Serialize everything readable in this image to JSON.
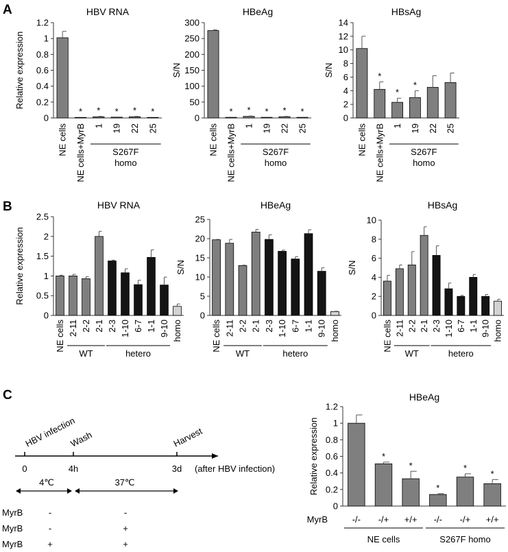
{
  "figure": {
    "panel_labels": [
      "A",
      "B",
      "C"
    ],
    "colors": {
      "grey": "#7f7f7f",
      "black": "#141414",
      "light": "#d2d2d2",
      "axis": "#333333"
    },
    "timeline": {
      "events": [
        {
          "label": "HBV infection",
          "time": "0"
        },
        {
          "label": "Wash",
          "time": "4h"
        },
        {
          "label": "Harvest",
          "time": "3d"
        }
      ],
      "after_label": "(after HBV infection)",
      "temps": [
        "4℃",
        "37℃"
      ],
      "conditions": [
        {
          "name": "MyrB",
          "pre": "-",
          "post": "-"
        },
        {
          "name": "MyrB",
          "pre": "-",
          "post": "+"
        },
        {
          "name": "MyrB",
          "pre": "+",
          "post": "+"
        }
      ]
    }
  },
  "chart_data": [
    {
      "panel": "A",
      "type": "bar",
      "title": "HBV RNA",
      "ylabel": "Relative expression",
      "ylim": [
        0,
        1.2
      ],
      "yticks": [
        "0",
        "0.2",
        "0.4",
        "0.6",
        "0.8",
        "1",
        "1.2"
      ],
      "categories": [
        "NE cells",
        "NE cells+MyrB",
        "1",
        "19",
        "22",
        "25"
      ],
      "values": [
        1.01,
        0.005,
        0.015,
        0.01,
        0.015,
        0.005
      ],
      "errors": [
        0.08,
        0.0,
        0.005,
        0.0,
        0.005,
        0.0
      ],
      "colors": [
        "grey",
        "grey",
        "grey",
        "grey",
        "grey",
        "grey"
      ],
      "stars": [
        false,
        true,
        true,
        true,
        true,
        true
      ],
      "groups": [
        {
          "label": "S267F\nhomo",
          "from": 2,
          "to": 5
        }
      ]
    },
    {
      "panel": "A",
      "type": "bar",
      "title": "HBeAg",
      "ylabel": "S/N",
      "ylim": [
        0,
        300
      ],
      "yticks": [
        "0",
        "50",
        "100",
        "150",
        "200",
        "250",
        "300"
      ],
      "categories": [
        "NE cells",
        "NE cells+MyrB",
        "1",
        "19",
        "22",
        "25"
      ],
      "values": [
        275,
        2,
        5,
        2,
        4,
        2
      ],
      "errors": [
        2,
        0,
        1,
        0,
        1,
        0
      ],
      "colors": [
        "grey",
        "grey",
        "grey",
        "grey",
        "grey",
        "grey"
      ],
      "stars": [
        false,
        true,
        true,
        true,
        true,
        true
      ],
      "groups": [
        {
          "label": "S267F\nhomo",
          "from": 2,
          "to": 5
        }
      ]
    },
    {
      "panel": "A",
      "type": "bar",
      "title": "HBsAg",
      "ylabel": "S/N",
      "ylim": [
        0,
        14
      ],
      "yticks": [
        "0",
        "2",
        "4",
        "6",
        "8",
        "10",
        "12",
        "14"
      ],
      "categories": [
        "NE cells",
        "NE cells+MyrB",
        "1",
        "19",
        "22",
        "25"
      ],
      "values": [
        10.2,
        4.2,
        2.3,
        3.0,
        4.5,
        5.2
      ],
      "errors": [
        1.8,
        1.1,
        0.6,
        1.0,
        1.7,
        1.4
      ],
      "colors": [
        "grey",
        "grey",
        "grey",
        "grey",
        "grey",
        "grey"
      ],
      "stars": [
        false,
        true,
        true,
        true,
        false,
        false
      ],
      "groups": [
        {
          "label": "S267F\nhomo",
          "from": 2,
          "to": 5
        }
      ]
    },
    {
      "panel": "B",
      "type": "bar",
      "title": "HBV RNA",
      "ylabel": "Relative expression",
      "ylim": [
        0,
        2.5
      ],
      "yticks": [
        "0",
        "0.5",
        "1",
        "1.5",
        "2",
        "2.5"
      ],
      "categories": [
        "NE cells",
        "2-11",
        "2-2",
        "2-1",
        "2-3",
        "1-10",
        "6-7",
        "1-1",
        "9-10",
        "homo"
      ],
      "values": [
        1.0,
        1.0,
        0.93,
        2.0,
        1.38,
        1.08,
        0.78,
        1.47,
        0.77,
        0.23
      ],
      "errors": [
        0.02,
        0.04,
        0.05,
        0.13,
        0.02,
        0.1,
        0.11,
        0.19,
        0.2,
        0.06
      ],
      "colors": [
        "grey",
        "grey",
        "grey",
        "grey",
        "black",
        "black",
        "black",
        "black",
        "black",
        "light"
      ],
      "stars": [
        false,
        false,
        false,
        false,
        false,
        false,
        false,
        false,
        false,
        false
      ],
      "groups": [
        {
          "label": "WT",
          "from": 1,
          "to": 3
        },
        {
          "label": "hetero",
          "from": 4,
          "to": 8
        }
      ]
    },
    {
      "panel": "B",
      "type": "bar",
      "title": "HBeAg",
      "ylabel": "S/N",
      "ylim": [
        0,
        25
      ],
      "yticks": [
        "0",
        "5",
        "10",
        "15",
        "20",
        "25"
      ],
      "categories": [
        "NE cells",
        "2-11",
        "2-2",
        "2-1",
        "2-3",
        "1-10",
        "6-7",
        "1-1",
        "9-10",
        "homo"
      ],
      "values": [
        19.7,
        18.8,
        13.0,
        21.7,
        19.8,
        16.7,
        14.7,
        21.3,
        11.5,
        1.0
      ],
      "errors": [
        0.1,
        1.0,
        0.1,
        0.7,
        1.2,
        0.3,
        0.6,
        1.0,
        0.9,
        0.1
      ],
      "colors": [
        "grey",
        "grey",
        "grey",
        "grey",
        "black",
        "black",
        "black",
        "black",
        "black",
        "light"
      ],
      "stars": [
        false,
        false,
        false,
        false,
        false,
        false,
        false,
        false,
        false,
        false
      ],
      "groups": [
        {
          "label": "WT",
          "from": 1,
          "to": 3
        },
        {
          "label": "hetero",
          "from": 4,
          "to": 8
        }
      ]
    },
    {
      "panel": "B",
      "type": "bar",
      "title": "HBsAg",
      "ylabel": "S/N",
      "ylim": [
        0,
        10
      ],
      "yticks": [
        "0",
        "2",
        "4",
        "6",
        "8",
        "10"
      ],
      "categories": [
        "NE cells",
        "2-11",
        "2-2",
        "2-1",
        "2-3",
        "1-10",
        "6-7",
        "1-1",
        "9-10",
        "homo"
      ],
      "values": [
        3.6,
        4.9,
        5.3,
        8.4,
        6.3,
        2.8,
        2.0,
        4.0,
        2.0,
        1.5
      ],
      "errors": [
        0.6,
        0.4,
        1.4,
        0.9,
        1.0,
        0.6,
        0.1,
        0.3,
        0.2,
        0.2
      ],
      "colors": [
        "grey",
        "grey",
        "grey",
        "grey",
        "black",
        "black",
        "black",
        "black",
        "black",
        "light"
      ],
      "stars": [
        false,
        false,
        false,
        false,
        false,
        false,
        false,
        false,
        false,
        false
      ],
      "groups": [
        {
          "label": "WT",
          "from": 1,
          "to": 3
        },
        {
          "label": "hetero",
          "from": 4,
          "to": 8
        }
      ]
    },
    {
      "panel": "C",
      "type": "bar",
      "title": "HBeAg",
      "ylabel": "Relative expression",
      "ylim": [
        0,
        1.2
      ],
      "yticks": [
        "0",
        "0.2",
        "0.4",
        "0.6",
        "0.8",
        "1",
        "1.2"
      ],
      "row_label": "MyrB",
      "categories": [
        "-/-",
        "-/+",
        "+/+",
        "-/-",
        "-/+",
        "+/+"
      ],
      "values": [
        1.0,
        0.51,
        0.33,
        0.14,
        0.35,
        0.27
      ],
      "errors": [
        0.1,
        0.02,
        0.09,
        0.01,
        0.04,
        0.05
      ],
      "colors": [
        "grey",
        "grey",
        "grey",
        "grey",
        "grey",
        "grey"
      ],
      "stars": [
        false,
        true,
        true,
        true,
        true,
        true
      ],
      "groups": [
        {
          "label": "NE cells",
          "from": 0,
          "to": 2
        },
        {
          "label": "S267F homo",
          "from": 3,
          "to": 5
        }
      ]
    }
  ]
}
